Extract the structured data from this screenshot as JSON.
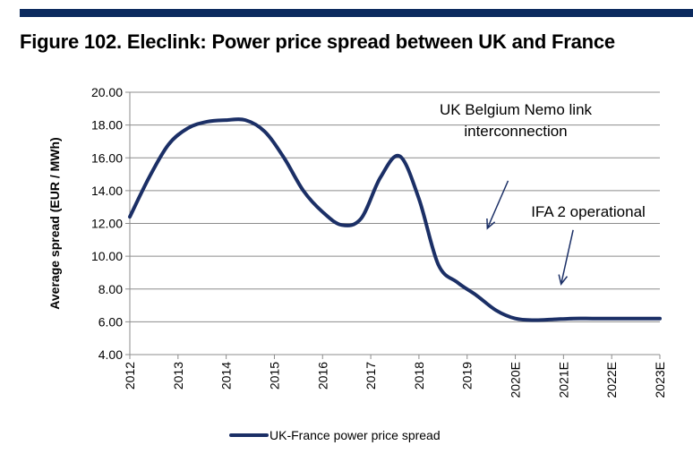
{
  "figure": {
    "title": "Figure 102. Eleclink: Power price spread between UK and France",
    "accent_color": "#0b2a5e"
  },
  "chart_data": {
    "type": "line",
    "title": "Figure 102. Eleclink: Power price spread between UK and France",
    "xlabel": "",
    "ylabel": "Average spread  (EUR / MWh)",
    "categories": [
      "2012",
      "2013",
      "2014",
      "2015",
      "2016",
      "2017",
      "2018",
      "2019",
      "2020E",
      "2021E",
      "2022E",
      "2023E"
    ],
    "ylim": [
      4,
      20
    ],
    "y_ticks": [
      "4.00",
      "6.00",
      "8.00",
      "10.00",
      "12.00",
      "14.00",
      "16.00",
      "18.00",
      "20.00"
    ],
    "grid": "horizontal",
    "legend_position": "bottom",
    "series": [
      {
        "name": "UK-France power price spread",
        "color": "#1b2f66",
        "x": [
          0,
          0.4,
          0.8,
          1.2,
          1.6,
          2.0,
          2.4,
          2.8,
          3.2,
          3.6,
          4.0,
          4.4,
          4.8,
          5.2,
          5.6,
          6.0,
          6.4,
          6.8,
          7.2,
          7.6,
          8.0,
          8.4,
          8.8,
          9.2,
          9.6,
          10.0,
          10.4,
          10.8,
          11.0
        ],
        "values": [
          12.4,
          14.8,
          16.8,
          17.8,
          18.2,
          18.3,
          18.3,
          17.6,
          16.0,
          14.0,
          12.7,
          11.9,
          12.3,
          14.8,
          16.1,
          13.5,
          9.5,
          8.4,
          7.6,
          6.7,
          6.2,
          6.1,
          6.15,
          6.2,
          6.2,
          6.2,
          6.2,
          6.2,
          6.2
        ]
      }
    ],
    "annotations": [
      {
        "text_lines": [
          "UK Belgium Nemo link",
          "interconnection"
        ],
        "arrow_from": [
          7.85,
          14.6
        ],
        "arrow_to": [
          7.42,
          11.7
        ]
      },
      {
        "text_lines": [
          "IFA 2 operational"
        ],
        "arrow_from": [
          9.2,
          11.6
        ],
        "arrow_to": [
          8.95,
          8.3
        ]
      }
    ]
  }
}
